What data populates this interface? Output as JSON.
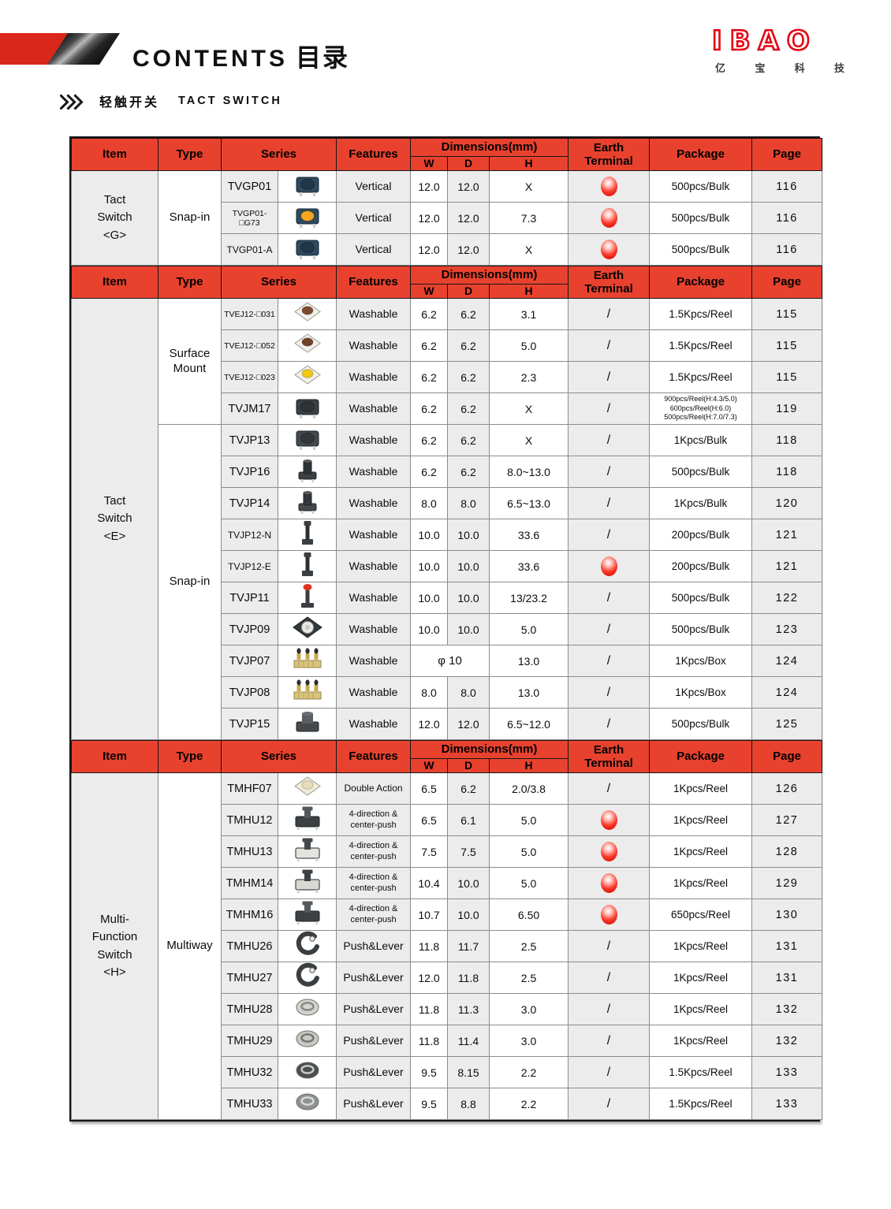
{
  "page": {
    "title_en": "CONTENTS",
    "title_zh": "目录",
    "logo": {
      "text": "IBAO",
      "sub_chars": [
        "亿",
        "宝",
        "科",
        "技"
      ]
    },
    "section_label": {
      "zh": "轻触开关",
      "en": "TACT SWITCH"
    }
  },
  "colors": {
    "header_red": "#e8422f",
    "band_red": "#da271c",
    "logo_red": "#e60012",
    "earth_ball_red": "#f42a1d",
    "cell_gray": "#ececec"
  },
  "table": {
    "header": {
      "item": "Item",
      "type": "Type",
      "series": "Series",
      "features": "Features",
      "dimensions": "Dimensions(mm)",
      "w": "W",
      "d": "D",
      "h": "H",
      "earth": "Earth\nTerminal",
      "package": "Package",
      "page": "Page"
    },
    "sections": [
      {
        "name": "tact-switch-g",
        "item": "Tact\nSwitch\n<G>",
        "type_groups": [
          {
            "label": "Snap-in",
            "rows": 3
          }
        ],
        "rows": [
          {
            "series": "TVGP01",
            "features": "Vertical",
            "w": "12.0",
            "d": "12.0",
            "h": "X",
            "earth": "ball",
            "package": "500pcs/Bulk",
            "page": "116",
            "icon": {
              "kind": "tact",
              "base": "#2e4a61",
              "cap": "#203649"
            }
          },
          {
            "series": "TVGP01-□G73",
            "features": "Vertical",
            "w": "12.0",
            "d": "12.0",
            "h": "7.3",
            "earth": "ball",
            "package": "500pcs/Bulk",
            "page": "116",
            "icon": {
              "kind": "tact",
              "base": "#2e4a61",
              "cap": "#f4a61f"
            }
          },
          {
            "series": "TVGP01-A",
            "features": "Vertical",
            "w": "12.0",
            "d": "12.0",
            "h": "X",
            "earth": "ball",
            "package": "500pcs/Bulk",
            "page": "116",
            "icon": {
              "kind": "tact",
              "base": "#2e4a61",
              "cap": "#203649"
            }
          }
        ]
      },
      {
        "name": "tact-switch-e",
        "item": "Tact\nSwitch\n<E>",
        "type_groups": [
          {
            "label": "Surface Mount",
            "rows": 4
          },
          {
            "label": "Snap-in",
            "rows": 10
          }
        ],
        "rows": [
          {
            "series": "TVEJ12-□031",
            "features": "Washable",
            "w": "6.2",
            "d": "6.2",
            "h": "3.1",
            "earth": "/",
            "package": "1.5Kpcs/Reel",
            "page": "115",
            "icon": {
              "kind": "smd",
              "base": "#f2f0ea",
              "cap": "#7b4a30"
            }
          },
          {
            "series": "TVEJ12-□052",
            "features": "Washable",
            "w": "6.2",
            "d": "6.2",
            "h": "5.0",
            "earth": "/",
            "package": "1.5Kpcs/Reel",
            "page": "115",
            "icon": {
              "kind": "smd",
              "base": "#f2f0ea",
              "cap": "#70422a"
            }
          },
          {
            "series": "TVEJ12-□023",
            "features": "Washable",
            "w": "6.2",
            "d": "6.2",
            "h": "2.3",
            "earth": "/",
            "package": "1.5Kpcs/Reel",
            "page": "115",
            "icon": {
              "kind": "smd",
              "base": "#f2f0ea",
              "cap": "#f0c713"
            }
          },
          {
            "series": "TVJM17",
            "features": "Washable",
            "w": "6.2",
            "d": "6.2",
            "h": "X",
            "earth": "/",
            "package": "900pcs/Reel(H:4.3/5.0)\n600pcs/Reel(H:6.0)\n500pcs/Reel(H:7.0/7.3)",
            "page": "119",
            "icon": {
              "kind": "tact",
              "base": "#3c4043",
              "cap": "#2e3235"
            }
          },
          {
            "series": "TVJP13",
            "features": "Washable",
            "w": "6.2",
            "d": "6.2",
            "h": "X",
            "earth": "/",
            "package": "1Kpcs/Bulk",
            "page": "118",
            "icon": {
              "kind": "tact",
              "base": "#45494c",
              "cap": "#33373a"
            }
          },
          {
            "series": "TVJP16",
            "features": "Washable",
            "w": "6.2",
            "d": "6.2",
            "h": "8.0~13.0",
            "earth": "/",
            "package": "500pcs/Bulk",
            "page": "118",
            "icon": {
              "kind": "tall",
              "base": "#3c4043",
              "cap": "#2e3235"
            }
          },
          {
            "series": "TVJP14",
            "features": "Washable",
            "w": "8.0",
            "d": "8.0",
            "h": "6.5~13.0",
            "earth": "/",
            "package": "1Kpcs/Bulk",
            "page": "120",
            "icon": {
              "kind": "tall",
              "base": "#45494c",
              "cap": "#33373a"
            }
          },
          {
            "series": "TVJP12-N",
            "features": "Washable",
            "w": "10.0",
            "d": "10.0",
            "h": "33.6",
            "earth": "/",
            "package": "200pcs/Bulk",
            "page": "121",
            "icon": {
              "kind": "stem",
              "base": "#3a3e41",
              "cap": "#2c3033"
            }
          },
          {
            "series": "TVJP12-E",
            "features": "Washable",
            "w": "10.0",
            "d": "10.0",
            "h": "33.6",
            "earth": "ball",
            "package": "200pcs/Bulk",
            "page": "121",
            "icon": {
              "kind": "stem",
              "base": "#3a3e41",
              "cap": "#2c3033"
            }
          },
          {
            "series": "TVJP11",
            "features": "Washable",
            "w": "10.0",
            "d": "10.0",
            "h": "13/23.2",
            "earth": "/",
            "package": "500pcs/Bulk",
            "page": "122",
            "icon": {
              "kind": "capstem",
              "base": "#3a3e41",
              "cap": "#e23222"
            }
          },
          {
            "series": "TVJP09",
            "features": "Washable",
            "w": "10.0",
            "d": "10.0",
            "h": "5.0",
            "earth": "/",
            "package": "500pcs/Bulk",
            "page": "123",
            "icon": {
              "kind": "dome",
              "base": "#33383b",
              "cap": "#e9e9e6"
            }
          },
          {
            "series": "TVJP07",
            "features": "Washable",
            "dia": "φ 10",
            "h": "13.0",
            "earth": "/",
            "package": "1Kpcs/Box",
            "page": "124",
            "icon": {
              "kind": "triple",
              "base": "#d9c37a",
              "cap": "#caa94e"
            }
          },
          {
            "series": "TVJP08",
            "features": "Washable",
            "w": "8.0",
            "d": "8.0",
            "h": "13.0",
            "earth": "/",
            "package": "1Kpcs/Box",
            "page": "124",
            "icon": {
              "kind": "triple",
              "base": "#d9c37a",
              "cap": "#caa94e"
            }
          },
          {
            "series": "TVJP15",
            "features": "Washable",
            "w": "12.0",
            "d": "12.0",
            "h": "6.5~12.0",
            "earth": "/",
            "package": "500pcs/Bulk",
            "page": "125",
            "icon": {
              "kind": "cyl",
              "base": "#45494c",
              "cap": "#5a5e61"
            }
          }
        ]
      },
      {
        "name": "multi-function-switch-h",
        "item": "Multi-\nFunction\nSwitch\n<H>",
        "type_groups": [
          {
            "label": "Multiway",
            "rows": 11
          }
        ],
        "rows": [
          {
            "series": "TMHF07",
            "features": "Double Action",
            "w": "6.5",
            "d": "6.2",
            "h": "2.0/3.8",
            "earth": "/",
            "package": "1Kpcs/Reel",
            "page": "126",
            "icon": {
              "kind": "smd",
              "base": "#efecdc",
              "cap": "#e8ddb9"
            }
          },
          {
            "series": "TMHU12",
            "features": "4-direction & center-push",
            "w": "6.5",
            "d": "6.1",
            "h": "5.0",
            "earth": "ball",
            "package": "1Kpcs/Reel",
            "page": "127",
            "icon": {
              "kind": "multi",
              "base": "#3c4043",
              "cap": "#55595c"
            }
          },
          {
            "series": "TMHU13",
            "features": "4-direction & center-push",
            "w": "7.5",
            "d": "7.5",
            "h": "5.0",
            "earth": "ball",
            "package": "1Kpcs/Reel",
            "page": "128",
            "icon": {
              "kind": "multi",
              "base": "#e4e4df",
              "cap": "#44484b"
            }
          },
          {
            "series": "TMHM14",
            "features": "4-direction & center-push",
            "w": "10.4",
            "d": "10.0",
            "h": "5.0",
            "earth": "ball",
            "package": "1Kpcs/Reel",
            "page": "129",
            "icon": {
              "kind": "multi",
              "base": "#d8d8d3",
              "cap": "#3c4043"
            }
          },
          {
            "series": "TMHM16",
            "features": "4-direction & center-push",
            "w": "10.7",
            "d": "10.0",
            "h": "6.50",
            "earth": "ball",
            "package": "650pcs/Reel",
            "page": "130",
            "icon": {
              "kind": "multi",
              "base": "#3c4043",
              "cap": "#55595c"
            }
          },
          {
            "series": "TMHU26",
            "features": "Push&Lever",
            "w": "11.8",
            "d": "11.7",
            "h": "2.5",
            "earth": "/",
            "package": "1Kpcs/Reel",
            "page": "131",
            "icon": {
              "kind": "lever",
              "base": "#3b3f42",
              "cap": "#e8e8e4"
            }
          },
          {
            "series": "TMHU27",
            "features": "Push&Lever",
            "w": "12.0",
            "d": "11.8",
            "h": "2.5",
            "earth": "/",
            "package": "1Kpcs/Reel",
            "page": "131",
            "icon": {
              "kind": "lever",
              "base": "#3b3f42",
              "cap": "#e8e8e4"
            }
          },
          {
            "series": "TMHU28",
            "features": "Push&Lever",
            "w": "11.8",
            "d": "11.3",
            "h": "3.0",
            "earth": "/",
            "package": "1Kpcs/Reel",
            "page": "132",
            "icon": {
              "kind": "oval",
              "base": "#d4d4cf",
              "cap": "#8a8a86"
            }
          },
          {
            "series": "TMHU29",
            "features": "Push&Lever",
            "w": "11.8",
            "d": "11.4",
            "h": "3.0",
            "earth": "/",
            "package": "1Kpcs/Reel",
            "page": "132",
            "icon": {
              "kind": "oval",
              "base": "#c9c9c4",
              "cap": "#777773"
            }
          },
          {
            "series": "TMHU32",
            "features": "Push&Lever",
            "w": "9.5",
            "d": "8.15",
            "h": "2.2",
            "earth": "/",
            "package": "1.5Kpcs/Reel",
            "page": "133",
            "icon": {
              "kind": "oval",
              "base": "#4a4e51",
              "cap": "#c9c9c4"
            }
          },
          {
            "series": "TMHU33",
            "features": "Push&Lever",
            "w": "9.5",
            "d": "8.8",
            "h": "2.2",
            "earth": "/",
            "package": "1.5Kpcs/Reel",
            "page": "133",
            "icon": {
              "kind": "oval",
              "base": "#8e9294",
              "cap": "#d9d9d4"
            }
          }
        ]
      }
    ]
  }
}
